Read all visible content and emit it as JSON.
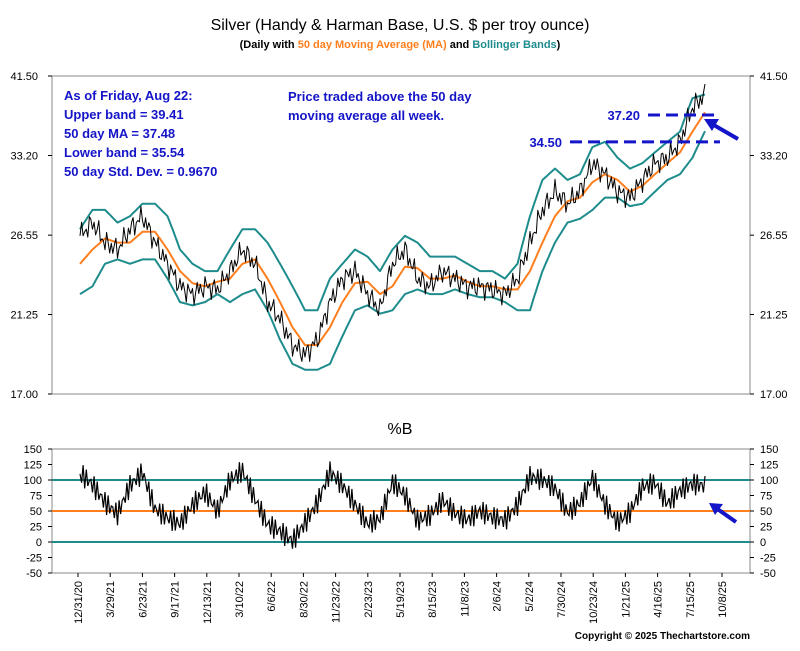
{
  "chart_data": [
    {
      "type": "line",
      "title": "Silver (Handy & Harman Base, U.S. $ per troy ounce)",
      "subtitle": {
        "prefix": "(Daily with ",
        "ma_label": "50 day Moving Average (MA)",
        "mid": " and ",
        "bb_label": "Bollinger Bands",
        "suffix": ")"
      },
      "y_ticks": [
        "41.50",
        "33.20",
        "26.55",
        "21.25",
        "17.00"
      ],
      "y_tick_values": [
        41.5,
        33.2,
        26.55,
        21.25,
        17.0
      ],
      "ylim": [
        17.0,
        41.5
      ],
      "y_scale": "log",
      "x_tick_labels": [
        "12/31/20",
        "3/29/21",
        "6/23/21",
        "9/17/21",
        "12/13/21",
        "3/10/22",
        "6/6/22",
        "8/30/22",
        "11/23/22",
        "2/23/23",
        "5/19/23",
        "8/15/23",
        "11/8/23",
        "2/6/24",
        "5/2/24",
        "7/30/24",
        "10/23/24",
        "1/21/25",
        "4/16/25",
        "7/15/25",
        "10/8/25"
      ],
      "grid": false,
      "annotation_stats": [
        "As of Friday, Aug 22:",
        "Upper band = 39.41",
        "50 day MA = 37.48",
        "Lower band = 35.54",
        "50 day Std. Dev. = 0.9670"
      ],
      "annotation_note": [
        "Price traded above the 50 day",
        "moving average all week."
      ],
      "reference_levels": [
        {
          "label": "37.20",
          "value": 37.2
        },
        {
          "label": "34.50",
          "value": 34.5
        }
      ],
      "series": [
        {
          "name": "Price",
          "color": "#000000",
          "x": [
            0,
            0.02,
            0.04,
            0.06,
            0.08,
            0.1,
            0.12,
            0.14,
            0.16,
            0.18,
            0.2,
            0.22,
            0.24,
            0.26,
            0.28,
            0.3,
            0.32,
            0.34,
            0.36,
            0.38,
            0.4,
            0.42,
            0.44,
            0.46,
            0.48,
            0.5,
            0.52,
            0.54,
            0.56,
            0.58,
            0.6,
            0.62,
            0.64,
            0.66,
            0.68,
            0.7,
            0.72,
            0.74,
            0.76,
            0.78,
            0.8,
            0.82,
            0.84,
            0.86,
            0.88,
            0.9,
            0.92,
            0.94,
            0.96,
            0.98,
            1.0
          ],
          "values": [
            26.5,
            27.5,
            26.0,
            25.5,
            27.0,
            28.0,
            26.0,
            24.5,
            23.0,
            22.5,
            23.0,
            22.8,
            24.0,
            25.5,
            24.5,
            22.0,
            21.0,
            19.5,
            19.0,
            19.8,
            22.0,
            23.5,
            24.0,
            22.5,
            21.5,
            24.5,
            25.5,
            23.5,
            23.0,
            24.0,
            23.5,
            23.0,
            23.0,
            22.8,
            22.5,
            23.5,
            26.0,
            28.5,
            30.0,
            29.0,
            30.0,
            32.5,
            31.5,
            30.0,
            29.5,
            31.0,
            32.5,
            33.0,
            34.5,
            38.0,
            39.4
          ]
        },
        {
          "name": "50 day Moving Average (MA)",
          "color": "#ff7f1e",
          "values": [
            24.5,
            25.5,
            26.3,
            26.0,
            26.0,
            26.8,
            26.8,
            25.5,
            24.0,
            23.2,
            23.0,
            23.3,
            23.5,
            24.5,
            24.8,
            23.5,
            22.0,
            20.5,
            19.5,
            19.5,
            20.5,
            22.0,
            23.2,
            23.3,
            22.5,
            23.0,
            24.3,
            24.2,
            23.5,
            23.5,
            23.7,
            23.3,
            23.0,
            23.0,
            22.8,
            22.8,
            24.0,
            26.0,
            28.0,
            29.2,
            29.5,
            30.8,
            31.5,
            31.0,
            30.0,
            30.5,
            31.5,
            32.5,
            33.5,
            35.5,
            37.48
          ]
        },
        {
          "name": "Bollinger Bands (upper)",
          "color": "#1e8c8c",
          "values": [
            27.0,
            28.5,
            28.5,
            27.5,
            28.0,
            29.0,
            29.0,
            28.0,
            25.5,
            24.5,
            24.0,
            24.0,
            25.5,
            27.0,
            27.0,
            26.0,
            24.5,
            23.0,
            21.5,
            21.5,
            23.5,
            24.5,
            25.5,
            25.0,
            24.0,
            25.5,
            26.5,
            26.0,
            25.0,
            25.0,
            25.0,
            24.5,
            24.0,
            24.0,
            23.5,
            24.5,
            28.0,
            31.0,
            32.0,
            31.0,
            31.5,
            34.0,
            34.5,
            33.0,
            32.0,
            32.5,
            33.5,
            34.5,
            35.5,
            39.0,
            39.41
          ]
        },
        {
          "name": "Bollinger Bands (lower)",
          "color": "#1e8c8c",
          "values": [
            22.5,
            23.0,
            24.5,
            24.8,
            24.5,
            24.8,
            24.8,
            23.5,
            22.0,
            21.8,
            22.0,
            22.5,
            22.0,
            22.5,
            22.8,
            21.5,
            19.8,
            18.5,
            18.2,
            18.2,
            18.5,
            20.0,
            21.5,
            21.8,
            21.3,
            21.5,
            22.5,
            22.8,
            22.5,
            22.5,
            22.8,
            22.5,
            22.3,
            22.3,
            22.0,
            21.5,
            21.5,
            24.0,
            26.0,
            27.5,
            27.8,
            28.5,
            29.5,
            29.5,
            28.8,
            29.0,
            30.0,
            31.0,
            31.5,
            33.0,
            35.54
          ]
        }
      ]
    },
    {
      "type": "line",
      "title": "%B",
      "y_ticks": [
        "150",
        "125",
        "100",
        "75",
        "50",
        "25",
        "0",
        "-25",
        "-50"
      ],
      "y_tick_values": [
        150,
        125,
        100,
        75,
        50,
        25,
        0,
        -25,
        -50
      ],
      "ylim": [
        -50,
        150
      ],
      "reference_levels": [
        100,
        50,
        0
      ],
      "series": [
        {
          "name": "%B",
          "color": "#000000",
          "values": [
            110,
            90,
            60,
            40,
            85,
            105,
            45,
            30,
            20,
            50,
            70,
            40,
            90,
            105,
            60,
            20,
            10,
            -5,
            25,
            60,
            110,
            90,
            60,
            30,
            40,
            100,
            80,
            40,
            50,
            75,
            55,
            45,
            60,
            50,
            45,
            70,
            115,
            110,
            95,
            55,
            70,
            110,
            65,
            35,
            50,
            90,
            95,
            60,
            80,
            90,
            85
          ]
        }
      ]
    }
  ],
  "copyright": "Copyright © 2025 Thechartstore.com",
  "colors": {
    "price": "#000000",
    "ma": "#ff7f1e",
    "bands": "#1e8c8c",
    "annotation": "#1414c8"
  }
}
